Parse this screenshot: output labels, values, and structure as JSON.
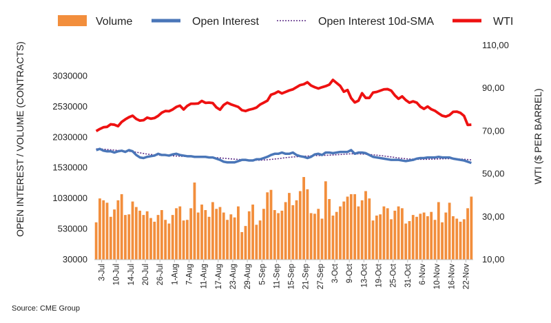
{
  "chart_data": {
    "type": "bar+line",
    "legend": [
      {
        "key": "volume",
        "label": "Volume"
      },
      {
        "key": "oi",
        "label": "Open Interest"
      },
      {
        "key": "sma",
        "label": "Open Interest 10d-SMA"
      },
      {
        "key": "wti",
        "label": "WTI"
      }
    ],
    "colors": {
      "volume": "#F28E3C",
      "oi": "#4A76B8",
      "sma": "#5B2A86",
      "wti": "#EE1111"
    },
    "ylabel_left": "OPEN INTEREST / VOLUME (CONTRACTS)",
    "ylabel_right": "WTI ($ PER BARREL)",
    "ylim_left": [
      30000,
      3530000
    ],
    "ylim_right": [
      10,
      110
    ],
    "yticks_left": [
      "30000",
      "530000",
      "1030000",
      "1530000",
      "2030000",
      "2530000",
      "3030000"
    ],
    "yticks_right": [
      "10,00",
      "30,00",
      "50,00",
      "70,00",
      "90,00",
      "110,00"
    ],
    "xticks": [
      "3-Jul",
      "10-Jul",
      "14-Jul",
      "20-Jul",
      "26-Jul",
      "1-Aug",
      "7-Aug",
      "11-Aug",
      "17-Aug",
      "23-Aug",
      "29-Aug",
      "5-Sep",
      "11-Sep",
      "15-Sep",
      "21-Sep",
      "27-Sep",
      "3-Oct",
      "9-Oct",
      "13-Oct",
      "19-Oct",
      "25-Oct",
      "31-Oct",
      "6-Nov",
      "10-Nov",
      "16-Nov",
      "22-Nov"
    ],
    "n_days": 104,
    "volume": [
      640000,
      1030000,
      1000000,
      960000,
      730000,
      850000,
      1000000,
      1100000,
      760000,
      770000,
      980000,
      890000,
      830000,
      760000,
      820000,
      710000,
      650000,
      760000,
      840000,
      680000,
      620000,
      760000,
      870000,
      900000,
      670000,
      680000,
      870000,
      1290000,
      800000,
      930000,
      840000,
      730000,
      970000,
      860000,
      890000,
      800000,
      680000,
      770000,
      720000,
      900000,
      480000,
      580000,
      820000,
      930000,
      600000,
      670000,
      860000,
      1130000,
      1170000,
      840000,
      790000,
      830000,
      970000,
      1120000,
      920000,
      1000000,
      1150000,
      1380000,
      1180000,
      790000,
      780000,
      860000,
      700000,
      1310000,
      1020000,
      750000,
      810000,
      900000,
      980000,
      1060000,
      1100000,
      1100000,
      900000,
      1000000,
      1150000,
      1030000,
      670000,
      750000,
      770000,
      900000,
      870000,
      690000,
      830000,
      900000,
      870000,
      620000,
      660000,
      760000,
      730000,
      780000,
      800000,
      740000,
      810000,
      680000,
      970000,
      640000,
      800000,
      960000,
      740000,
      700000,
      650000,
      690000,
      870000,
      1060000
    ],
    "oi": [
      1820000,
      1840000,
      1810000,
      1800000,
      1800000,
      1780000,
      1800000,
      1810000,
      1790000,
      1820000,
      1800000,
      1740000,
      1700000,
      1690000,
      1710000,
      1720000,
      1730000,
      1760000,
      1740000,
      1740000,
      1730000,
      1750000,
      1760000,
      1740000,
      1730000,
      1720000,
      1720000,
      1710000,
      1710000,
      1710000,
      1710000,
      1700000,
      1700000,
      1680000,
      1660000,
      1630000,
      1620000,
      1620000,
      1620000,
      1640000,
      1660000,
      1660000,
      1650000,
      1650000,
      1670000,
      1670000,
      1690000,
      1710000,
      1740000,
      1760000,
      1760000,
      1780000,
      1760000,
      1760000,
      1780000,
      1740000,
      1720000,
      1710000,
      1690000,
      1710000,
      1750000,
      1760000,
      1740000,
      1780000,
      1780000,
      1770000,
      1780000,
      1790000,
      1790000,
      1790000,
      1820000,
      1760000,
      1780000,
      1780000,
      1770000,
      1740000,
      1710000,
      1700000,
      1690000,
      1680000,
      1670000,
      1660000,
      1660000,
      1660000,
      1650000,
      1640000,
      1650000,
      1660000,
      1680000,
      1690000,
      1690000,
      1700000,
      1700000,
      1700000,
      1710000,
      1700000,
      1700000,
      1700000,
      1680000,
      1670000,
      1660000,
      1650000,
      1630000,
      1610000
    ],
    "sma": [
      1840000,
      1840000,
      1835000,
      1830000,
      1825000,
      1820000,
      1815000,
      1810000,
      1805000,
      1800000,
      1795000,
      1785000,
      1775000,
      1765000,
      1755000,
      1748000,
      1742000,
      1738000,
      1735000,
      1732000,
      1729000,
      1726000,
      1723000,
      1720000,
      1718000,
      1716000,
      1714000,
      1712000,
      1710000,
      1708000,
      1706000,
      1703000,
      1700000,
      1696000,
      1692000,
      1687000,
      1682000,
      1677000,
      1672000,
      1668000,
      1664000,
      1661000,
      1659000,
      1657000,
      1656000,
      1656000,
      1658000,
      1662000,
      1668000,
      1674000,
      1680000,
      1688000,
      1696000,
      1702000,
      1708000,
      1712000,
      1716000,
      1720000,
      1723000,
      1726000,
      1729000,
      1731000,
      1733000,
      1735000,
      1737000,
      1740000,
      1744000,
      1748000,
      1752000,
      1756000,
      1760000,
      1760000,
      1758000,
      1755000,
      1752000,
      1748000,
      1743000,
      1737000,
      1731000,
      1724000,
      1716000,
      1708000,
      1700000,
      1692000,
      1685000,
      1678000,
      1674000,
      1672000,
      1670000,
      1669000,
      1669000,
      1670000,
      1672000,
      1674000,
      1676000,
      1678000,
      1679000,
      1679000,
      1678000,
      1676000,
      1673000,
      1670000,
      1666000,
      1660000
    ],
    "wti": [
      70.0,
      71.0,
      71.8,
      72.0,
      73.2,
      73.0,
      72.3,
      74.3,
      75.5,
      76.5,
      77.2,
      75.7,
      74.9,
      75.1,
      76.3,
      75.8,
      76.1,
      77.1,
      78.6,
      79.4,
      79.3,
      80.1,
      81.3,
      81.9,
      80.1,
      81.8,
      82.8,
      82.8,
      82.9,
      84.1,
      83.2,
      83.3,
      83.1,
      81.1,
      80.0,
      82.2,
      83.3,
      82.5,
      81.9,
      81.3,
      79.8,
      79.4,
      80.0,
      80.4,
      81.0,
      82.4,
      83.3,
      84.2,
      87.0,
      87.6,
      88.5,
      87.6,
      88.3,
      89.0,
      89.5,
      90.5,
      91.5,
      91.9,
      92.8,
      91.3,
      90.5,
      89.9,
      90.5,
      91.0,
      91.7,
      93.9,
      92.5,
      91.1,
      88.4,
      89.2,
      85.4,
      83.4,
      84.2,
      87.7,
      85.5,
      85.5,
      88.0,
      88.3,
      88.9,
      89.5,
      89.6,
      88.9,
      86.7,
      85.1,
      86.2,
      84.5,
      83.3,
      83.9,
      83.3,
      81.4,
      80.4,
      81.5,
      80.2,
      79.5,
      78.3,
      77.2,
      76.8,
      77.5,
      79.0,
      79.1,
      78.5,
      77.1,
      72.9,
      73.0
    ]
  },
  "source": "Source: CME Group"
}
